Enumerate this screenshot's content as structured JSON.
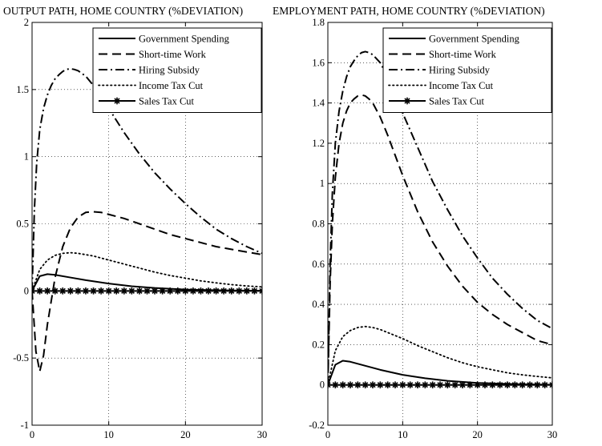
{
  "chart_data": [
    {
      "type": "line",
      "title": "OUTPUT PATH, HOME COUNTRY (%DEVIATION)",
      "xlabel": "",
      "ylabel": "",
      "xlim": [
        0,
        30
      ],
      "ylim": [
        -1,
        2
      ],
      "xticks": [
        0,
        10,
        20,
        30
      ],
      "yticks": [
        -1,
        -0.5,
        0,
        0.5,
        1,
        1.5,
        2
      ],
      "xtick_labels": [
        "0",
        "10",
        "20",
        "30"
      ],
      "ytick_labels": [
        "-1",
        "-0.5",
        "0",
        "0.5",
        "1",
        "1.5",
        "2"
      ],
      "grid": true,
      "legend_position": "top-right",
      "series": [
        {
          "name": "Government Spending",
          "style": "solid",
          "x": [
            0,
            1,
            2,
            3,
            5,
            7,
            10,
            13,
            16,
            20,
            25,
            30
          ],
          "y": [
            0,
            0.11,
            0.125,
            0.12,
            0.1,
            0.08,
            0.055,
            0.035,
            0.022,
            0.01,
            0.004,
            0.001
          ]
        },
        {
          "name": "Short-time Work",
          "style": "dashed",
          "x": [
            0,
            0.5,
            1,
            1.5,
            2,
            3,
            4,
            5,
            6,
            7,
            8,
            9,
            10,
            12,
            14,
            16,
            18,
            20,
            22,
            24,
            26,
            28,
            30
          ],
          "y": [
            0,
            -0.45,
            -0.6,
            -0.48,
            -0.25,
            0.1,
            0.33,
            0.47,
            0.55,
            0.585,
            0.59,
            0.585,
            0.57,
            0.54,
            0.5,
            0.46,
            0.42,
            0.39,
            0.36,
            0.33,
            0.31,
            0.29,
            0.27
          ]
        },
        {
          "name": "Hiring Subsidy",
          "style": "dashdot",
          "x": [
            0,
            0.3,
            0.6,
            1,
            1.5,
            2,
            2.5,
            3,
            3.5,
            4,
            4.5,
            5,
            5.5,
            6,
            7,
            8,
            9,
            10,
            12,
            14,
            16,
            18,
            20,
            22,
            24,
            26,
            28,
            30
          ],
          "y": [
            0,
            0.6,
            0.95,
            1.2,
            1.36,
            1.46,
            1.53,
            1.58,
            1.61,
            1.635,
            1.65,
            1.655,
            1.65,
            1.64,
            1.6,
            1.53,
            1.45,
            1.36,
            1.18,
            1.02,
            0.88,
            0.76,
            0.65,
            0.55,
            0.46,
            0.39,
            0.33,
            0.28
          ]
        },
        {
          "name": "Income Tax Cut",
          "style": "dotted",
          "x": [
            0,
            1,
            2,
            3,
            4,
            5,
            6,
            7,
            8,
            10,
            12,
            14,
            16,
            18,
            20,
            22,
            24,
            26,
            28,
            30
          ],
          "y": [
            0,
            0.16,
            0.23,
            0.265,
            0.28,
            0.285,
            0.28,
            0.27,
            0.26,
            0.23,
            0.2,
            0.17,
            0.14,
            0.115,
            0.095,
            0.075,
            0.06,
            0.047,
            0.037,
            0.03
          ]
        },
        {
          "name": "Sales Tax Cut",
          "style": "solid-star",
          "x": [
            0,
            1,
            2,
            3,
            4,
            5,
            6,
            7,
            8,
            9,
            10,
            11,
            12,
            13,
            14,
            15,
            16,
            17,
            18,
            19,
            20,
            21,
            22,
            23,
            24,
            25,
            26,
            27,
            28,
            29,
            30
          ],
          "y": [
            0,
            0,
            0,
            0,
            0,
            0,
            0,
            0,
            0,
            0,
            0,
            0,
            0,
            0,
            0,
            0,
            0,
            0,
            0,
            0,
            0,
            0,
            0,
            0,
            0,
            0,
            0,
            0,
            0,
            0,
            0
          ]
        }
      ]
    },
    {
      "type": "line",
      "title": "EMPLOYMENT PATH, HOME COUNTRY (%DEVIATION)",
      "xlabel": "",
      "ylabel": "",
      "xlim": [
        0,
        30
      ],
      "ylim": [
        -0.2,
        1.8
      ],
      "xticks": [
        0,
        10,
        20,
        30
      ],
      "yticks": [
        -0.2,
        0,
        0.2,
        0.4,
        0.6,
        0.8,
        1,
        1.2,
        1.4,
        1.6,
        1.8
      ],
      "xtick_labels": [
        "0",
        "10",
        "20",
        "30"
      ],
      "ytick_labels": [
        "-0.2",
        "0",
        "0.2",
        "0.4",
        "0.6",
        "0.8",
        "1",
        "1.2",
        "1.4",
        "1.6",
        "1.8"
      ],
      "grid": true,
      "legend_position": "top-right",
      "series": [
        {
          "name": "Government Spending",
          "style": "solid",
          "x": [
            0,
            1,
            2,
            3,
            5,
            7,
            10,
            13,
            16,
            20,
            25,
            30
          ],
          "y": [
            0,
            0.1,
            0.12,
            0.115,
            0.095,
            0.075,
            0.05,
            0.033,
            0.02,
            0.01,
            0.004,
            0.001
          ]
        },
        {
          "name": "Short-time Work",
          "style": "dashed",
          "x": [
            0,
            0.3,
            0.6,
            1,
            1.5,
            2,
            2.5,
            3,
            3.5,
            4,
            4.5,
            5,
            5.5,
            6,
            7,
            8,
            9,
            10,
            12,
            14,
            16,
            18,
            20,
            22,
            24,
            26,
            28,
            30
          ],
          "y": [
            0,
            0.5,
            0.8,
            1.03,
            1.2,
            1.3,
            1.36,
            1.4,
            1.42,
            1.435,
            1.44,
            1.435,
            1.42,
            1.4,
            1.33,
            1.24,
            1.14,
            1.04,
            0.86,
            0.71,
            0.59,
            0.49,
            0.41,
            0.35,
            0.3,
            0.26,
            0.22,
            0.2
          ]
        },
        {
          "name": "Hiring Subsidy",
          "style": "dashdot",
          "x": [
            0,
            0.3,
            0.6,
            1,
            1.5,
            2,
            2.5,
            3,
            3.5,
            4,
            4.5,
            5,
            5.5,
            6,
            7,
            8,
            9,
            10,
            12,
            14,
            16,
            18,
            20,
            22,
            24,
            26,
            28,
            30
          ],
          "y": [
            0,
            0.6,
            0.95,
            1.2,
            1.36,
            1.46,
            1.53,
            1.58,
            1.61,
            1.635,
            1.65,
            1.655,
            1.65,
            1.64,
            1.6,
            1.53,
            1.44,
            1.35,
            1.18,
            1.01,
            0.87,
            0.74,
            0.63,
            0.53,
            0.45,
            0.38,
            0.32,
            0.28
          ]
        },
        {
          "name": "Income Tax Cut",
          "style": "dotted",
          "x": [
            0,
            1,
            2,
            3,
            4,
            5,
            6,
            7,
            8,
            10,
            12,
            14,
            16,
            18,
            20,
            22,
            24,
            26,
            28,
            30
          ],
          "y": [
            0,
            0.17,
            0.24,
            0.27,
            0.285,
            0.29,
            0.285,
            0.275,
            0.26,
            0.23,
            0.195,
            0.165,
            0.135,
            0.11,
            0.09,
            0.075,
            0.06,
            0.05,
            0.042,
            0.035
          ]
        },
        {
          "name": "Sales Tax Cut",
          "style": "solid-star",
          "x": [
            0,
            1,
            2,
            3,
            4,
            5,
            6,
            7,
            8,
            9,
            10,
            11,
            12,
            13,
            14,
            15,
            16,
            17,
            18,
            19,
            20,
            21,
            22,
            23,
            24,
            25,
            26,
            27,
            28,
            29,
            30
          ],
          "y": [
            0,
            0,
            0,
            0,
            0,
            0,
            0,
            0,
            0,
            0,
            0,
            0,
            0,
            0,
            0,
            0,
            0,
            0,
            0,
            0,
            0,
            0,
            0,
            0,
            0,
            0,
            0,
            0,
            0,
            0,
            0
          ]
        }
      ]
    }
  ]
}
